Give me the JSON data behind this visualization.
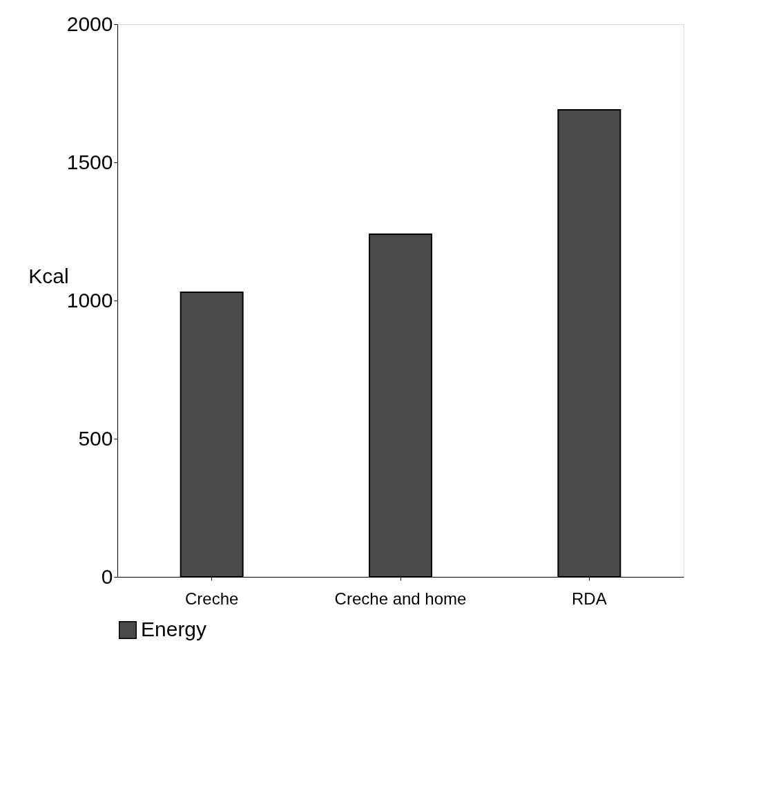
{
  "chart_data": {
    "type": "bar",
    "ylabel": "Kcal",
    "categories": [
      "Creche",
      "Creche and home",
      "RDA"
    ],
    "series": [
      {
        "name": "Energy",
        "color": "#4a4a4a",
        "values": [
          1030,
          1240,
          1690
        ]
      }
    ],
    "ylim": [
      0,
      2000
    ],
    "yticks": [
      0,
      500,
      1000,
      1500,
      2000
    ],
    "grid": false,
    "legend": "bottom"
  }
}
